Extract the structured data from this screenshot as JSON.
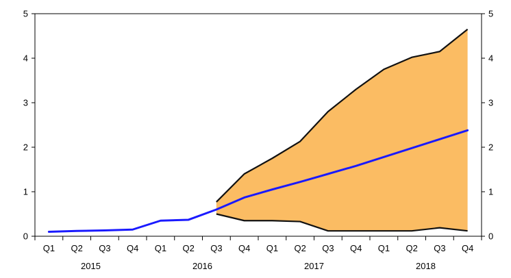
{
  "chart_data": {
    "type": "area",
    "categories": [
      "Q1",
      "Q2",
      "Q3",
      "Q4",
      "Q1",
      "Q2",
      "Q3",
      "Q4",
      "Q1",
      "Q2",
      "Q3",
      "Q4",
      "Q1",
      "Q2",
      "Q3",
      "Q4"
    ],
    "years": [
      {
        "label": "2015",
        "start": 0,
        "end": 3
      },
      {
        "label": "2016",
        "start": 4,
        "end": 7
      },
      {
        "label": "2017",
        "start": 8,
        "end": 11
      },
      {
        "label": "2018",
        "start": 12,
        "end": 15
      }
    ],
    "series": [
      {
        "values": [
          0.1,
          0.12,
          0.13,
          0.15,
          0.35,
          0.37,
          0.6,
          0.87,
          1.05,
          1.22,
          1.4,
          1.58,
          1.78,
          1.98,
          2.18,
          2.38
        ]
      }
    ],
    "band": {
      "start_index": 6,
      "upper": [
        0.77,
        1.4,
        1.75,
        2.13,
        2.8,
        3.3,
        3.75,
        4.02,
        4.15,
        4.65
      ],
      "lower": [
        0.5,
        0.35,
        0.35,
        0.33,
        0.12,
        0.12,
        0.12,
        0.12,
        0.19,
        0.12
      ]
    },
    "ylim": [
      0,
      5
    ],
    "yticks": [
      0,
      1,
      2,
      3,
      4,
      5
    ],
    "ytick_labels": [
      "0",
      "1",
      "2",
      "3",
      "4",
      "5"
    ],
    "grid": false,
    "colors": {
      "line": "#1a1aff",
      "band_fill": "#fbbc63",
      "band_edge": "#111111",
      "axis": "#000000"
    }
  }
}
